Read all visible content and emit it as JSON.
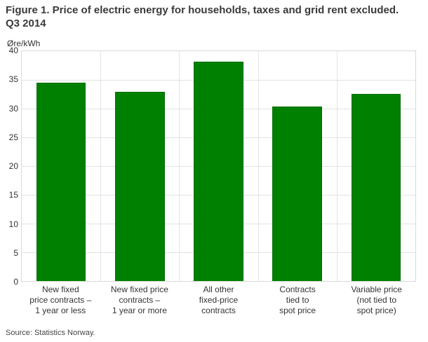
{
  "title": {
    "line1": "Figure 1. Price of electric energy for households, taxes and grid rent excluded.",
    "line2": "Q3 2014"
  },
  "source": "Source: Statistics Norway.",
  "colors": {
    "bar_fill": "#008000",
    "bar_border": "#056d05",
    "gridline": "#e3e3e3",
    "frame": "#d9d9d9",
    "text": "#333333"
  },
  "chart_data": {
    "type": "bar",
    "title": "Figure 1. Price of electric energy for households, taxes and grid rent excluded. Q3 2014",
    "ylabel": "Øre/kWh",
    "xlabel": "",
    "categories": [
      "New fixed price contracts – 1 year or less",
      "New fixed price contracts – 1 year or more",
      "All other fixed-price contracts",
      "Contracts tied to spot price",
      "Variable price (not tied to spot price)"
    ],
    "category_lines": [
      [
        "New fixed",
        "price contracts –",
        "1 year or less"
      ],
      [
        "New fixed price",
        "contracts –",
        "1 year or more"
      ],
      [
        "All other",
        "fixed-price",
        "contracts"
      ],
      [
        "Contracts",
        "tied to",
        "spot price"
      ],
      [
        "Variable price",
        "(not tied to",
        "spot price)"
      ]
    ],
    "values": [
      34.5,
      32.9,
      38.2,
      30.4,
      32.6
    ],
    "ylim": [
      0,
      40
    ],
    "yticks": [
      0,
      5,
      10,
      15,
      20,
      25,
      30,
      35,
      40
    ],
    "grid": true,
    "legend_position": "none",
    "bar_color": "#008000"
  }
}
